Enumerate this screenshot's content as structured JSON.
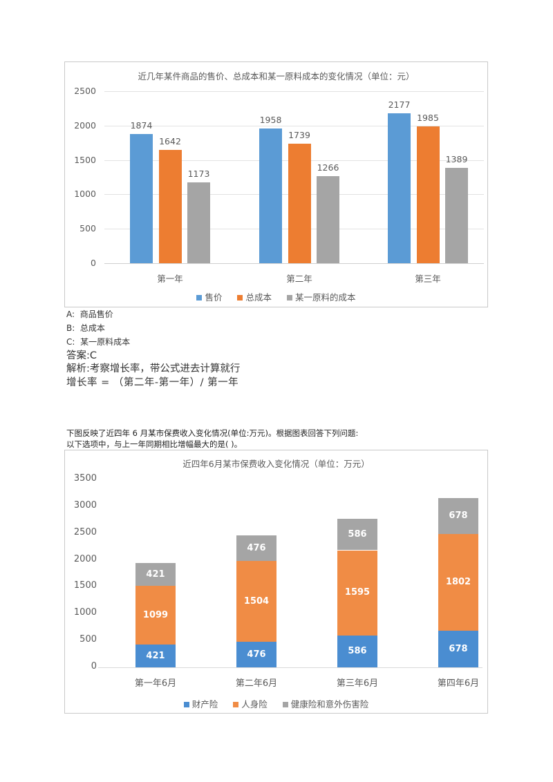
{
  "question1": {
    "options": [
      {
        "key": "A:",
        "text": "商品售价"
      },
      {
        "key": "B:",
        "text": "总成本"
      },
      {
        "key": "C:",
        "text": "某一原料成本"
      }
    ],
    "answer": "答案:C",
    "analysis": "解析:考察增长率，带公式进去计算就行",
    "formula": "增长率 = （第二年-第一年）/ 第一年"
  },
  "question2": {
    "intro": "下图反映了近四年 6 月某市保费收入变化情况(单位:万元)。根据图表回答下列问题:",
    "prompt": "以下选项中，与上一年同期相比增幅最大的是( )。"
  },
  "colors": {
    "blue": "#5B9BD5",
    "orange": "#ED7D31",
    "orange2": "#F08C45",
    "gray": "#A5A5A5",
    "blue2": "#4A8DD1"
  },
  "chart_data": [
    {
      "type": "bar",
      "title": "近几年某件商品的售价、总成本和某一原料成本的变化情况（单位：元）",
      "categories": [
        "第一年",
        "第二年",
        "第三年"
      ],
      "series": [
        {
          "name": "售价",
          "values": [
            1874,
            1958,
            2177
          ]
        },
        {
          "name": "总成本",
          "values": [
            1642,
            1739,
            1985
          ]
        },
        {
          "name": "某一原料的成本",
          "values": [
            1173,
            1266,
            1389
          ]
        }
      ],
      "xlabel": "",
      "ylabel": "",
      "ylim": [
        0,
        2500
      ],
      "yticks": [
        0,
        500,
        1000,
        1500,
        2000,
        2500
      ],
      "grid": true,
      "legend_position": "bottom"
    },
    {
      "type": "stacked_bar",
      "title": "近四年6月某市保费收入变化情况（单位：万元）",
      "categories": [
        "第一年6月",
        "第二年6月",
        "第三年6月",
        "第四年6月"
      ],
      "series": [
        {
          "name": "财产险",
          "values": [
            421,
            476,
            586,
            678
          ]
        },
        {
          "name": "人身险",
          "values": [
            1099,
            1504,
            1595,
            1802
          ]
        },
        {
          "name": "健康险和意外伤害险",
          "values": [
            421,
            476,
            586,
            678
          ]
        }
      ],
      "xlabel": "",
      "ylabel": "",
      "ylim": [
        0,
        3500
      ],
      "yticks": [
        0,
        500,
        1000,
        1500,
        2000,
        2500,
        3000,
        3500
      ],
      "grid": false,
      "legend_position": "bottom"
    }
  ]
}
